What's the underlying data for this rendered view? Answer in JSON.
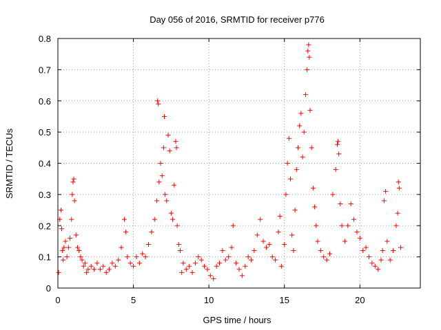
{
  "chart_data": {
    "type": "scatter",
    "title": "Day 056 of 2016, SRMTID for receiver p776",
    "xlabel": "GPS time / hours",
    "ylabel": "SRMTID / TECUs",
    "xlim": [
      0,
      24
    ],
    "ylim": [
      0,
      0.8
    ],
    "xticks": [
      0,
      5,
      10,
      15,
      20
    ],
    "yticks": [
      0,
      0.1,
      0.2,
      0.3,
      0.4,
      0.5,
      0.6,
      0.7,
      0.8
    ],
    "xtick_labels": [
      "0",
      "5",
      "10",
      "15",
      "20"
    ],
    "ytick_labels": [
      "0",
      "0.1",
      "0.2",
      "0.3",
      "0.4",
      "0.5",
      "0.6",
      "0.7",
      "0.8"
    ],
    "grid": true,
    "marker": "+",
    "color": "#ff0000",
    "series": [
      {
        "name": "SRMTID",
        "points": [
          [
            0.05,
            0.05
          ],
          [
            0.12,
            0.22
          ],
          [
            0.2,
            0.25
          ],
          [
            0.25,
            0.19
          ],
          [
            0.3,
            0.12
          ],
          [
            0.35,
            0.09
          ],
          [
            0.4,
            0.13
          ],
          [
            0.5,
            0.15
          ],
          [
            0.6,
            0.1
          ],
          [
            0.7,
            0.13
          ],
          [
            0.8,
            0.16
          ],
          [
            0.9,
            0.22
          ],
          [
            0.95,
            0.3
          ],
          [
            1.0,
            0.34
          ],
          [
            1.05,
            0.35
          ],
          [
            1.1,
            0.28
          ],
          [
            1.2,
            0.17
          ],
          [
            1.3,
            0.13
          ],
          [
            1.4,
            0.12
          ],
          [
            1.5,
            0.1
          ],
          [
            1.6,
            0.09
          ],
          [
            1.7,
            0.07
          ],
          [
            1.8,
            0.08
          ],
          [
            1.9,
            0.05
          ],
          [
            2.0,
            0.06
          ],
          [
            2.2,
            0.07
          ],
          [
            2.4,
            0.06
          ],
          [
            2.6,
            0.08
          ],
          [
            2.8,
            0.06
          ],
          [
            3.0,
            0.07
          ],
          [
            3.2,
            0.05
          ],
          [
            3.4,
            0.06
          ],
          [
            3.6,
            0.08
          ],
          [
            3.8,
            0.07
          ],
          [
            4.0,
            0.09
          ],
          [
            4.2,
            0.13
          ],
          [
            4.4,
            0.22
          ],
          [
            4.5,
            0.18
          ],
          [
            4.6,
            0.1
          ],
          [
            4.8,
            0.08
          ],
          [
            5.0,
            0.07
          ],
          [
            5.2,
            0.1
          ],
          [
            5.4,
            0.08
          ],
          [
            5.6,
            0.11
          ],
          [
            5.8,
            0.1
          ],
          [
            6.0,
            0.14
          ],
          [
            6.2,
            0.18
          ],
          [
            6.4,
            0.22
          ],
          [
            6.55,
            0.28
          ],
          [
            6.6,
            0.6
          ],
          [
            6.65,
            0.59
          ],
          [
            6.7,
            0.34
          ],
          [
            6.8,
            0.4
          ],
          [
            6.9,
            0.36
          ],
          [
            7.0,
            0.45
          ],
          [
            7.05,
            0.55
          ],
          [
            7.1,
            0.3
          ],
          [
            7.2,
            0.28
          ],
          [
            7.3,
            0.49
          ],
          [
            7.4,
            0.44
          ],
          [
            7.5,
            0.24
          ],
          [
            7.6,
            0.22
          ],
          [
            7.7,
            0.33
          ],
          [
            7.8,
            0.47
          ],
          [
            7.85,
            0.45
          ],
          [
            7.9,
            0.2
          ],
          [
            8.0,
            0.14
          ],
          [
            8.1,
            0.12
          ],
          [
            8.2,
            0.05
          ],
          [
            8.3,
            0.08
          ],
          [
            8.5,
            0.06
          ],
          [
            8.7,
            0.07
          ],
          [
            8.9,
            0.05
          ],
          [
            9.1,
            0.08
          ],
          [
            9.3,
            0.1
          ],
          [
            9.5,
            0.09
          ],
          [
            9.7,
            0.07
          ],
          [
            9.9,
            0.06
          ],
          [
            10.1,
            0.04
          ],
          [
            10.3,
            0.03
          ],
          [
            10.5,
            0.07
          ],
          [
            10.7,
            0.08
          ],
          [
            10.9,
            0.12
          ],
          [
            11.1,
            0.09
          ],
          [
            11.3,
            0.1
          ],
          [
            11.5,
            0.13
          ],
          [
            11.6,
            0.2
          ],
          [
            11.8,
            0.08
          ],
          [
            12.0,
            0.06
          ],
          [
            12.2,
            0.04
          ],
          [
            12.4,
            0.07
          ],
          [
            12.6,
            0.1
          ],
          [
            12.8,
            0.09
          ],
          [
            13.0,
            0.12
          ],
          [
            13.2,
            0.17
          ],
          [
            13.4,
            0.22
          ],
          [
            13.6,
            0.15
          ],
          [
            13.8,
            0.13
          ],
          [
            14.0,
            0.14
          ],
          [
            14.2,
            0.1
          ],
          [
            14.4,
            0.09
          ],
          [
            14.6,
            0.18
          ],
          [
            14.7,
            0.23
          ],
          [
            14.8,
            0.07
          ],
          [
            15.0,
            0.14
          ],
          [
            15.1,
            0.3
          ],
          [
            15.2,
            0.4
          ],
          [
            15.3,
            0.48
          ],
          [
            15.4,
            0.35
          ],
          [
            15.5,
            0.17
          ],
          [
            15.6,
            0.12
          ],
          [
            15.7,
            0.25
          ],
          [
            15.8,
            0.38
          ],
          [
            15.9,
            0.45
          ],
          [
            16.0,
            0.52
          ],
          [
            16.1,
            0.56
          ],
          [
            16.2,
            0.42
          ],
          [
            16.3,
            0.5
          ],
          [
            16.4,
            0.62
          ],
          [
            16.5,
            0.7
          ],
          [
            16.55,
            0.76
          ],
          [
            16.6,
            0.78
          ],
          [
            16.65,
            0.74
          ],
          [
            16.7,
            0.57
          ],
          [
            16.8,
            0.45
          ],
          [
            16.9,
            0.32
          ],
          [
            17.0,
            0.26
          ],
          [
            17.1,
            0.2
          ],
          [
            17.2,
            0.15
          ],
          [
            17.4,
            0.12
          ],
          [
            17.6,
            0.1
          ],
          [
            17.8,
            0.09
          ],
          [
            18.0,
            0.11
          ],
          [
            18.2,
            0.3
          ],
          [
            18.4,
            0.38
          ],
          [
            18.5,
            0.46
          ],
          [
            18.55,
            0.47
          ],
          [
            18.6,
            0.43
          ],
          [
            18.7,
            0.27
          ],
          [
            18.8,
            0.2
          ],
          [
            19.0,
            0.15
          ],
          [
            19.2,
            0.2
          ],
          [
            19.4,
            0.27
          ],
          [
            19.6,
            0.22
          ],
          [
            19.8,
            0.18
          ],
          [
            20.0,
            0.16
          ],
          [
            20.2,
            0.12
          ],
          [
            20.4,
            0.13
          ],
          [
            20.6,
            0.1
          ],
          [
            20.8,
            0.08
          ],
          [
            21.0,
            0.07
          ],
          [
            21.2,
            0.06
          ],
          [
            21.4,
            0.09
          ],
          [
            21.5,
            0.12
          ],
          [
            21.6,
            0.28
          ],
          [
            21.7,
            0.31
          ],
          [
            21.8,
            0.15
          ],
          [
            22.0,
            0.09
          ],
          [
            22.2,
            0.12
          ],
          [
            22.4,
            0.2
          ],
          [
            22.5,
            0.24
          ],
          [
            22.55,
            0.34
          ],
          [
            22.6,
            0.32
          ],
          [
            22.7,
            0.13
          ]
        ]
      }
    ]
  }
}
